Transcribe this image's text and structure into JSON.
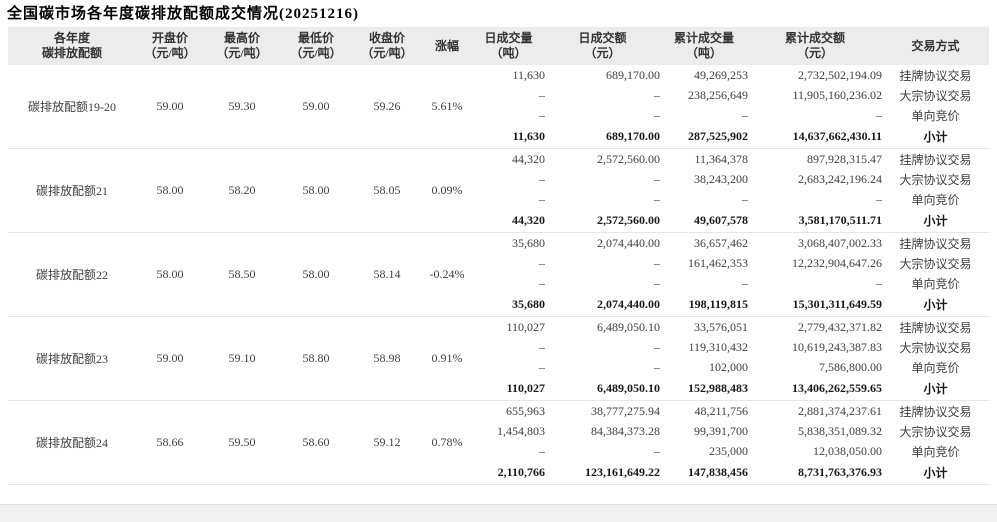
{
  "title": "全国碳市场各年度碳排放配额成交情况(20251216)",
  "colors": {
    "header_bg": "#ececec",
    "separator": "#e7e7e7",
    "text": "#333333",
    "number_text": "#404040",
    "dash": "#b3b3b3",
    "subtotal_text": "#1a1a1a",
    "bottom_strip_bg": "#f1f1f1",
    "bottom_strip_border": "#e3e3e3",
    "title_color": "#000000"
  },
  "table": {
    "columns": [
      {
        "line1": "各年度",
        "line2": "碳排放配额"
      },
      {
        "line1": "开盘价",
        "line2": "（元/吨）"
      },
      {
        "line1": "最高价",
        "line2": "（元/吨）"
      },
      {
        "line1": "最低价",
        "line2": "（元/吨）"
      },
      {
        "line1": "收盘价",
        "line2": "（元/吨）"
      },
      {
        "line1": "涨幅",
        "line2": ""
      },
      {
        "line1": "日成交量",
        "line2": "（吨）"
      },
      {
        "line1": "日成交额",
        "line2": "（元）"
      },
      {
        "line1": "累计成交量",
        "line2": "（吨）"
      },
      {
        "line1": "累计成交额",
        "line2": "（元）"
      },
      {
        "line1": "交易方式",
        "line2": ""
      }
    ],
    "blocks": [
      {
        "name": "碳排放配额19-20",
        "open": "59.00",
        "high": "59.30",
        "low": "59.00",
        "close": "59.26",
        "change": "5.61%",
        "rows": [
          {
            "daily_volume": "11,630",
            "daily_amount": "689,170.00",
            "cum_volume": "49,269,253",
            "cum_amount": "2,732,502,194.09",
            "method": "挂牌协议交易",
            "subtotal": false
          },
          {
            "daily_volume": "–",
            "daily_amount": "–",
            "cum_volume": "238,256,649",
            "cum_amount": "11,905,160,236.02",
            "method": "大宗协议交易",
            "subtotal": false
          },
          {
            "daily_volume": "–",
            "daily_amount": "–",
            "cum_volume": "–",
            "cum_amount": "–",
            "method": "单向竞价",
            "subtotal": false
          },
          {
            "daily_volume": "11,630",
            "daily_amount": "689,170.00",
            "cum_volume": "287,525,902",
            "cum_amount": "14,637,662,430.11",
            "method": "小计",
            "subtotal": true
          }
        ]
      },
      {
        "name": "碳排放配额21",
        "open": "58.00",
        "high": "58.20",
        "low": "58.00",
        "close": "58.05",
        "change": "0.09%",
        "rows": [
          {
            "daily_volume": "44,320",
            "daily_amount": "2,572,560.00",
            "cum_volume": "11,364,378",
            "cum_amount": "897,928,315.47",
            "method": "挂牌协议交易",
            "subtotal": false
          },
          {
            "daily_volume": "–",
            "daily_amount": "–",
            "cum_volume": "38,243,200",
            "cum_amount": "2,683,242,196.24",
            "method": "大宗协议交易",
            "subtotal": false
          },
          {
            "daily_volume": "–",
            "daily_amount": "–",
            "cum_volume": "–",
            "cum_amount": "–",
            "method": "单向竞价",
            "subtotal": false
          },
          {
            "daily_volume": "44,320",
            "daily_amount": "2,572,560.00",
            "cum_volume": "49,607,578",
            "cum_amount": "3,581,170,511.71",
            "method": "小计",
            "subtotal": true
          }
        ]
      },
      {
        "name": "碳排放配额22",
        "open": "58.00",
        "high": "58.50",
        "low": "58.00",
        "close": "58.14",
        "change": "-0.24%",
        "rows": [
          {
            "daily_volume": "35,680",
            "daily_amount": "2,074,440.00",
            "cum_volume": "36,657,462",
            "cum_amount": "3,068,407,002.33",
            "method": "挂牌协议交易",
            "subtotal": false
          },
          {
            "daily_volume": "–",
            "daily_amount": "–",
            "cum_volume": "161,462,353",
            "cum_amount": "12,232,904,647.26",
            "method": "大宗协议交易",
            "subtotal": false
          },
          {
            "daily_volume": "–",
            "daily_amount": "–",
            "cum_volume": "–",
            "cum_amount": "–",
            "method": "单向竞价",
            "subtotal": false
          },
          {
            "daily_volume": "35,680",
            "daily_amount": "2,074,440.00",
            "cum_volume": "198,119,815",
            "cum_amount": "15,301,311,649.59",
            "method": "小计",
            "subtotal": true
          }
        ]
      },
      {
        "name": "碳排放配额23",
        "open": "59.00",
        "high": "59.10",
        "low": "58.80",
        "close": "58.98",
        "change": "0.91%",
        "rows": [
          {
            "daily_volume": "110,027",
            "daily_amount": "6,489,050.10",
            "cum_volume": "33,576,051",
            "cum_amount": "2,779,432,371.82",
            "method": "挂牌协议交易",
            "subtotal": false
          },
          {
            "daily_volume": "–",
            "daily_amount": "–",
            "cum_volume": "119,310,432",
            "cum_amount": "10,619,243,387.83",
            "method": "大宗协议交易",
            "subtotal": false
          },
          {
            "daily_volume": "–",
            "daily_amount": "–",
            "cum_volume": "102,000",
            "cum_amount": "7,586,800.00",
            "method": "单向竞价",
            "subtotal": false
          },
          {
            "daily_volume": "110,027",
            "daily_amount": "6,489,050.10",
            "cum_volume": "152,988,483",
            "cum_amount": "13,406,262,559.65",
            "method": "小计",
            "subtotal": true
          }
        ]
      },
      {
        "name": "碳排放配额24",
        "open": "58.66",
        "high": "59.50",
        "low": "58.60",
        "close": "59.12",
        "change": "0.78%",
        "rows": [
          {
            "daily_volume": "655,963",
            "daily_amount": "38,777,275.94",
            "cum_volume": "48,211,756",
            "cum_amount": "2,881,374,237.61",
            "method": "挂牌协议交易",
            "subtotal": false
          },
          {
            "daily_volume": "1,454,803",
            "daily_amount": "84,384,373.28",
            "cum_volume": "99,391,700",
            "cum_amount": "5,838,351,089.32",
            "method": "大宗协议交易",
            "subtotal": false
          },
          {
            "daily_volume": "–",
            "daily_amount": "–",
            "cum_volume": "235,000",
            "cum_amount": "12,038,050.00",
            "method": "单向竞价",
            "subtotal": false
          },
          {
            "daily_volume": "2,110,766",
            "daily_amount": "123,161,649.22",
            "cum_volume": "147,838,456",
            "cum_amount": "8,731,763,376.93",
            "method": "小计",
            "subtotal": true
          }
        ]
      }
    ]
  }
}
